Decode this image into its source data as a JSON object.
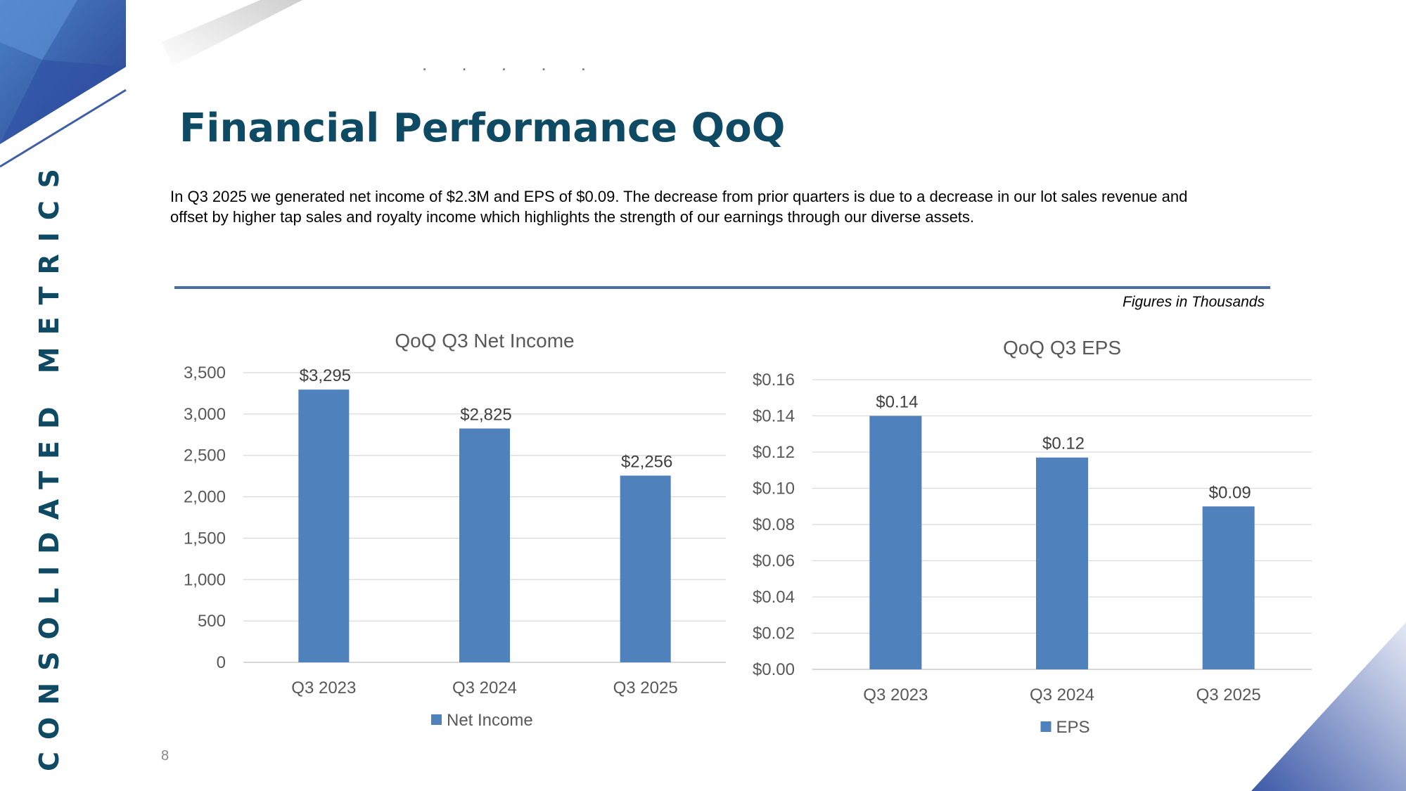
{
  "side_label": "CONSOLIDATED METRICS",
  "dots": ". . . . .",
  "title": "Financial Performance QoQ",
  "summary": "In Q3 2025 we generated net income of $2.3M and EPS of $0.09.  The decrease from prior quarters is due to a decrease in our lot sales revenue and offset by higher tap sales and royalty income which highlights the strength of our earnings through our diverse assets.",
  "figures_note": "Figures in Thousands",
  "page_number": "8",
  "colors": {
    "bar": "#4f81bd",
    "title": "#0e4a63",
    "grid": "#d9d9d9",
    "axis_text": "#595959"
  },
  "chart_data": [
    {
      "type": "bar",
      "title": "QoQ Q3 Net Income",
      "categories": [
        "Q3 2023",
        "Q3 2024",
        "Q3 2025"
      ],
      "series": [
        {
          "name": "Net Income",
          "values": [
            3295,
            2825,
            2256
          ]
        }
      ],
      "data_labels": [
        "$3,295",
        "$2,825",
        "$2,256"
      ],
      "yticks": [
        "0",
        "500",
        "1,000",
        "1,500",
        "2,000",
        "2,500",
        "3,000",
        "3,500"
      ],
      "ylim": [
        0,
        3500
      ],
      "legend": "bottom"
    },
    {
      "type": "bar",
      "title": "QoQ Q3 EPS",
      "categories": [
        "Q3 2023",
        "Q3 2024",
        "Q3 2025"
      ],
      "series": [
        {
          "name": "EPS",
          "values": [
            0.14,
            0.117,
            0.09
          ]
        }
      ],
      "data_labels": [
        "$0.14",
        "$0.12",
        "$0.09"
      ],
      "yticks": [
        "$0.00",
        "$0.02",
        "$0.04",
        "$0.06",
        "$0.08",
        "$0.10",
        "$0.12",
        "$0.14",
        "$0.16"
      ],
      "ylim": [
        0,
        0.16
      ],
      "legend": "bottom"
    }
  ]
}
